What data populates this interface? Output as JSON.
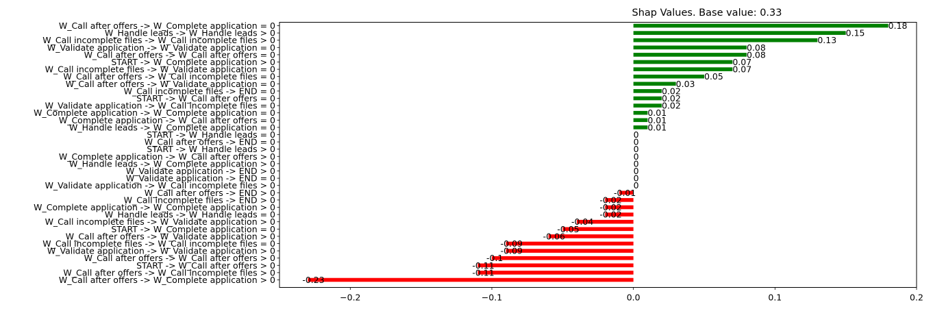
{
  "chart_data": {
    "type": "bar",
    "orientation": "horizontal",
    "title": "Shap Values. Base value: 0.33",
    "xlabel": "",
    "ylabel": "",
    "xlim": [
      -0.25,
      0.2
    ],
    "x_ticks": [
      -0.2,
      -0.1,
      0.0,
      0.1,
      0.2
    ],
    "x_tick_labels": [
      "−0.2",
      "−0.1",
      "0.0",
      "0.1",
      "0.2"
    ],
    "grid": false,
    "positive_color": "#008000",
    "negative_color": "#ff0000",
    "categories": [
      "W_Call after offers -> W_Complete application = 0",
      "W_Handle leads -> W_Handle leads > 0",
      "W_Call incomplete files -> W_Call incomplete files > 0",
      "W_Validate application -> W_Validate application = 0",
      "W_Call after offers -> W_Call after offers = 0",
      "START -> W_Complete application > 0",
      "W_Call incomplete files -> W_Validate application = 0",
      "W_Call after offers -> W_Call incomplete files = 0",
      "W_Call after offers -> W_Validate application = 0",
      "W_Call incomplete files -> END = 0",
      "START -> W_Call after offers = 0",
      "W_Validate application -> W_Call incomplete files = 0",
      "W_Complete application -> W_Complete application = 0",
      "W_Complete application -> W_Call after offers = 0",
      "W_Handle leads -> W_Complete application = 0",
      "START -> W_Handle leads = 0",
      "W_Call after offers -> END = 0",
      "START -> W_Handle leads > 0",
      "W_Complete application -> W_Call after offers > 0",
      "W_Handle leads -> W_Complete application > 0",
      "W_Validate application -> END > 0",
      "W_Validate application -> END = 0",
      "W_Validate application -> W_Call incomplete files > 0",
      "W_Call after offers -> END > 0",
      "W_Call incomplete files -> END > 0",
      "W_Complete application -> W_Complete application > 0",
      "W_Handle leads -> W_Handle leads = 0",
      "W_Call incomplete files -> W_Validate application > 0",
      "START -> W_Complete application = 0",
      "W_Call after offers -> W_Validate application > 0",
      "W_Call incomplete files -> W_Call incomplete files = 0",
      "W_Validate application -> W_Validate application > 0",
      "W_Call after offers -> W_Call after offers > 0",
      "START -> W_Call after offers > 0",
      "W_Call after offers -> W_Call incomplete files > 0",
      "W_Call after offers -> W_Complete application > 0"
    ],
    "values": [
      0.18,
      0.15,
      0.13,
      0.08,
      0.08,
      0.07,
      0.07,
      0.05,
      0.03,
      0.02,
      0.02,
      0.02,
      0.01,
      0.01,
      0.01,
      0,
      0,
      0,
      0,
      0,
      0,
      0,
      0,
      -0.01,
      -0.02,
      -0.02,
      -0.02,
      -0.04,
      -0.05,
      -0.06,
      -0.09,
      -0.09,
      -0.1,
      -0.11,
      -0.11,
      -0.23
    ],
    "value_labels": [
      "0.18",
      "0.15",
      "0.13",
      "0.08",
      "0.08",
      "0.07",
      "0.07",
      "0.05",
      "0.03",
      "0.02",
      "0.02",
      "0.02",
      "0.01",
      "0.01",
      "0.01",
      "0",
      "0",
      "0",
      "0",
      "0",
      "0",
      "0",
      "0",
      "-0.01",
      "-0.02",
      "-0.02",
      "-0.02",
      "-0.04",
      "-0.05",
      "-0.06",
      "-0.09",
      "-0.09",
      "-0.1",
      "-0.11",
      "-0.11",
      "-0.23"
    ]
  }
}
